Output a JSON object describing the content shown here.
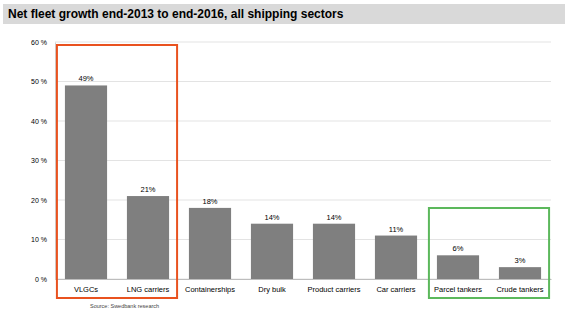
{
  "chart_data": {
    "type": "bar",
    "title": "Net fleet growth end-2013 to end-2016, all shipping sectors",
    "source": "Source: Swedbank research",
    "categories": [
      "VLGCs",
      "LNG carriers",
      "Containerships",
      "Dry bulk",
      "Product carriers",
      "Car carriers",
      "Parcel tankers",
      "Crude tankers"
    ],
    "values": [
      49,
      21,
      18,
      14,
      14,
      11,
      6,
      3
    ],
    "value_labels": [
      "49%",
      "21%",
      "18%",
      "14%",
      "14%",
      "11%",
      "6%",
      "3%"
    ],
    "color": "#7f7f7f",
    "ylim": [
      0,
      60
    ],
    "yticks": [
      {
        "value": 0,
        "label": "0 %"
      },
      {
        "value": 10,
        "label": "10 %"
      },
      {
        "value": 20,
        "label": "20 %"
      },
      {
        "value": 30,
        "label": "30 %"
      },
      {
        "value": 40,
        "label": "40 %"
      },
      {
        "value": 50,
        "label": "50 %"
      },
      {
        "value": 60,
        "label": "60 %"
      }
    ],
    "grid": true,
    "data_labels": true
  }
}
